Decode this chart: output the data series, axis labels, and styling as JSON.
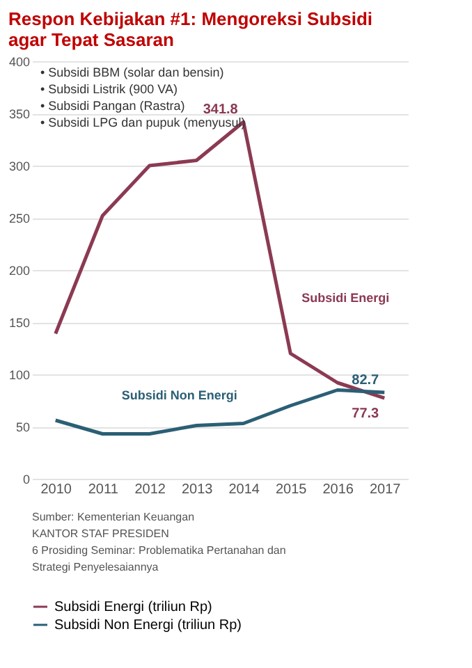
{
  "chart_data": {
    "type": "line",
    "title": "Respon Kebijakan #1: Mengoreksi Subsidi agar Tepat Sasaran",
    "categories": [
      "2010",
      "2011",
      "2012",
      "2013",
      "2014",
      "2015",
      "2016",
      "2017"
    ],
    "series": [
      {
        "name": "Subsidi Energi (triliun Rp)",
        "color": "#8b3a52",
        "values": [
          139,
          252,
          300,
          305,
          341.8,
          120,
          92,
          77.3
        ],
        "value_labels": [
          null,
          null,
          null,
          null,
          "341.8",
          null,
          null,
          "77.3"
        ]
      },
      {
        "name": "Subsidi Non Energi (triliun Rp)",
        "color": "#2b5f75",
        "values": [
          56,
          43,
          43,
          51,
          53,
          70,
          85,
          82.7
        ],
        "value_labels": [
          null,
          null,
          null,
          null,
          null,
          null,
          null,
          "82.7"
        ]
      }
    ],
    "ylim": [
      0,
      400
    ],
    "yticks": [
      0,
      50,
      100,
      150,
      200,
      250,
      300,
      350,
      400
    ],
    "grid": "y",
    "legend": "bottom",
    "marker": "none",
    "annotations": [
      "• Subsidi BBM (solar dan bensin)",
      "• Subsidi Listrik (900 VA)",
      "• Subsidi Pangan (Rastra)",
      "• Subsidi LPG dan pupuk (menyusul)",
      "Subsidi Energi",
      "Subsidi Non Energi",
      "Sumber: Kementerian Keuangan",
      "KANTOR STAF PRESIDEN",
      "6 Prosiding Seminar: Problematika Pertanahan dan Strategi Penyelesaiannya"
    ]
  }
}
